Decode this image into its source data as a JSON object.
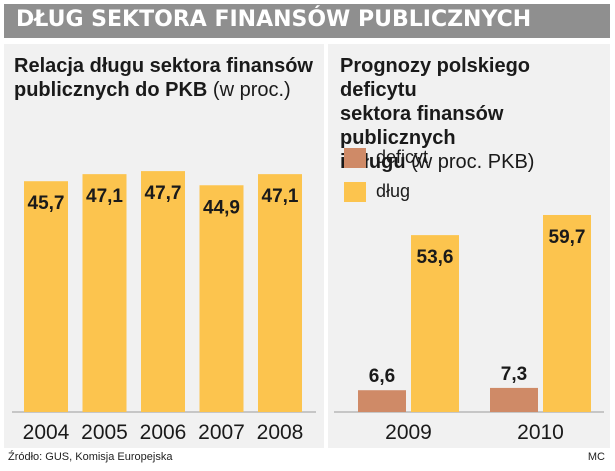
{
  "header": {
    "title": "DŁUG SEKTORA FINANSÓW PUBLICZNYCH"
  },
  "colors": {
    "header_bg": "#8f8f8f",
    "panel_bg": "#f1f1f1",
    "dlug": "#fcc44e",
    "deficyt": "#cf8a67"
  },
  "left_panel": {
    "title_line1": "Relacja długu sektora finansów",
    "title_line2_bold": "publicznych do PKB",
    "title_line2_unit": "(w proc.)"
  },
  "right_panel": {
    "title_line1": "Prognozy polskiego deficytu",
    "title_line2": "sektora finansów publicznych",
    "title_line3_bold": "i długu",
    "title_line3_unit": "(w proc. PKB)",
    "legend": [
      {
        "label": "deficyt",
        "color": "#cf8a67"
      },
      {
        "label": "dług",
        "color": "#fcc44e"
      }
    ]
  },
  "footer": {
    "source": "Źródło: GUS, Komisja Europejska",
    "author": "MC"
  },
  "chart_data": [
    {
      "type": "bar",
      "title": "Relacja długu sektora finansów publicznych do PKB (w proc.)",
      "categories": [
        "2004",
        "2005",
        "2006",
        "2007",
        "2008"
      ],
      "values": [
        45.7,
        47.1,
        47.7,
        44.9,
        47.1
      ],
      "value_labels": [
        "45,7",
        "47,1",
        "47,7",
        "44,9",
        "47,1"
      ],
      "color": "#fcc44e"
    },
    {
      "type": "bar",
      "title": "Prognozy polskiego deficytu sektora finansów publicznych i długu (w proc. PKB)",
      "categories": [
        "2009",
        "2010"
      ],
      "series": [
        {
          "name": "deficyt",
          "values": [
            6.6,
            7.3
          ],
          "value_labels": [
            "6,6",
            "7,3"
          ],
          "color": "#cf8a67"
        },
        {
          "name": "dług",
          "values": [
            53.6,
            59.7
          ],
          "value_labels": [
            "53,6",
            "59,7"
          ],
          "color": "#fcc44e"
        }
      ]
    }
  ]
}
